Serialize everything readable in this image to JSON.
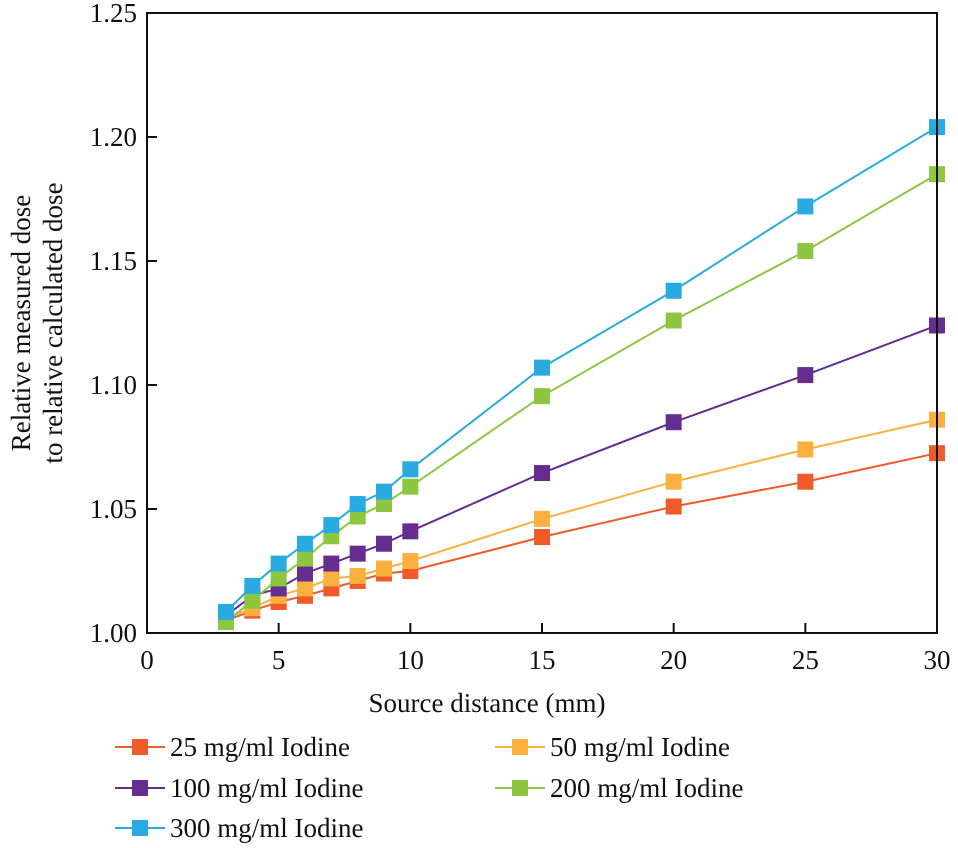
{
  "chart_data": {
    "type": "line",
    "title": "",
    "xlabel": "Source distance (mm)",
    "ylabel": [
      "Relative measured dose",
      "to relative calculated dose"
    ],
    "xlim": [
      0,
      30
    ],
    "ylim": [
      1.0,
      1.25
    ],
    "xticks": [
      0,
      5,
      10,
      15,
      20,
      25,
      30
    ],
    "xtick_labels": [
      "0",
      "5",
      "10",
      "15",
      "20",
      "25",
      "30"
    ],
    "yticks": [
      1.0,
      1.05,
      1.1,
      1.15,
      1.2,
      1.25
    ],
    "ytick_labels": [
      "1.00",
      "1.05",
      "1.10",
      "1.15",
      "1.20",
      "1.25"
    ],
    "grid": false,
    "legend_placement": "bottom",
    "x": [
      3,
      4,
      5,
      6,
      7,
      8,
      9,
      10,
      15,
      20,
      25,
      30
    ],
    "series": [
      {
        "name": "25 mg/ml Iodine",
        "color": "#f15a29",
        "values": [
          1.005,
          1.009,
          1.0125,
          1.015,
          1.018,
          1.021,
          1.024,
          1.025,
          1.0387,
          1.051,
          1.061,
          1.0725
        ]
      },
      {
        "name": "50 mg/ml Iodine",
        "color": "#fbb040",
        "values": [
          1.006,
          1.01,
          1.015,
          1.018,
          1.022,
          1.023,
          1.026,
          1.029,
          1.046,
          1.061,
          1.074,
          1.086
        ]
      },
      {
        "name": "100 mg/ml Iodine",
        "color": "#662d91",
        "values": [
          1.007,
          1.015,
          1.018,
          1.024,
          1.028,
          1.032,
          1.036,
          1.041,
          1.0645,
          1.085,
          1.104,
          1.124
        ]
      },
      {
        "name": "200 mg/ml Iodine",
        "color": "#8dc63f",
        "values": [
          1.0044,
          1.013,
          1.022,
          1.03,
          1.039,
          1.047,
          1.052,
          1.059,
          1.0955,
          1.126,
          1.154,
          1.185
        ]
      },
      {
        "name": "300 mg/ml Iodine",
        "color": "#29abe2",
        "values": [
          1.0085,
          1.019,
          1.028,
          1.036,
          1.0435,
          1.052,
          1.057,
          1.066,
          1.107,
          1.138,
          1.172,
          1.204
        ]
      }
    ]
  }
}
